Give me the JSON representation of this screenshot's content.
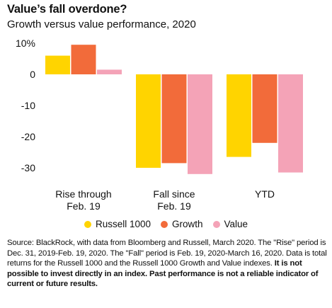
{
  "header": {
    "title": "Value’s fall overdone?",
    "subtitle": "Growth versus value performance, 2020"
  },
  "colors": {
    "russell_1000": "#FFD400",
    "growth": "#F26B3A",
    "value": "#F4A3B7"
  },
  "chart_data": {
    "type": "bar",
    "title": "Value’s fall overdone?",
    "subtitle": "Growth versus value performance, 2020",
    "categories": [
      [
        "Rise through",
        "Feb. 19"
      ],
      [
        "Fall since",
        "Feb. 19"
      ],
      [
        "YTD"
      ]
    ],
    "series": [
      {
        "name": "Russell 1000",
        "values": [
          6,
          -30,
          -26.5
        ]
      },
      {
        "name": "Growth",
        "values": [
          9.5,
          -28.5,
          -22
        ]
      },
      {
        "name": "Value",
        "values": [
          1.5,
          -32,
          -31.5
        ]
      }
    ],
    "yticks": [
      "10%",
      "0",
      "-10",
      "-20",
      "-30"
    ],
    "ylim": [
      -32,
      10
    ],
    "legend_position": "bottom",
    "grid": false
  },
  "footnote": {
    "text": "Source: BlackRock, with data from Bloomberg and Russell, March 2020. The \"Rise\" period is Dec. 31, 2019-Feb. 19, 2020. The \"Fall\" period is Feb. 19, 2020-March 16, 2020. Data is total returns for the Russell 1000 and the Russell 1000 Growth and Value indexes. ",
    "bold": "It is not possible to invest directly in an index. Past performance is not a reliable indicator of current or future results."
  }
}
